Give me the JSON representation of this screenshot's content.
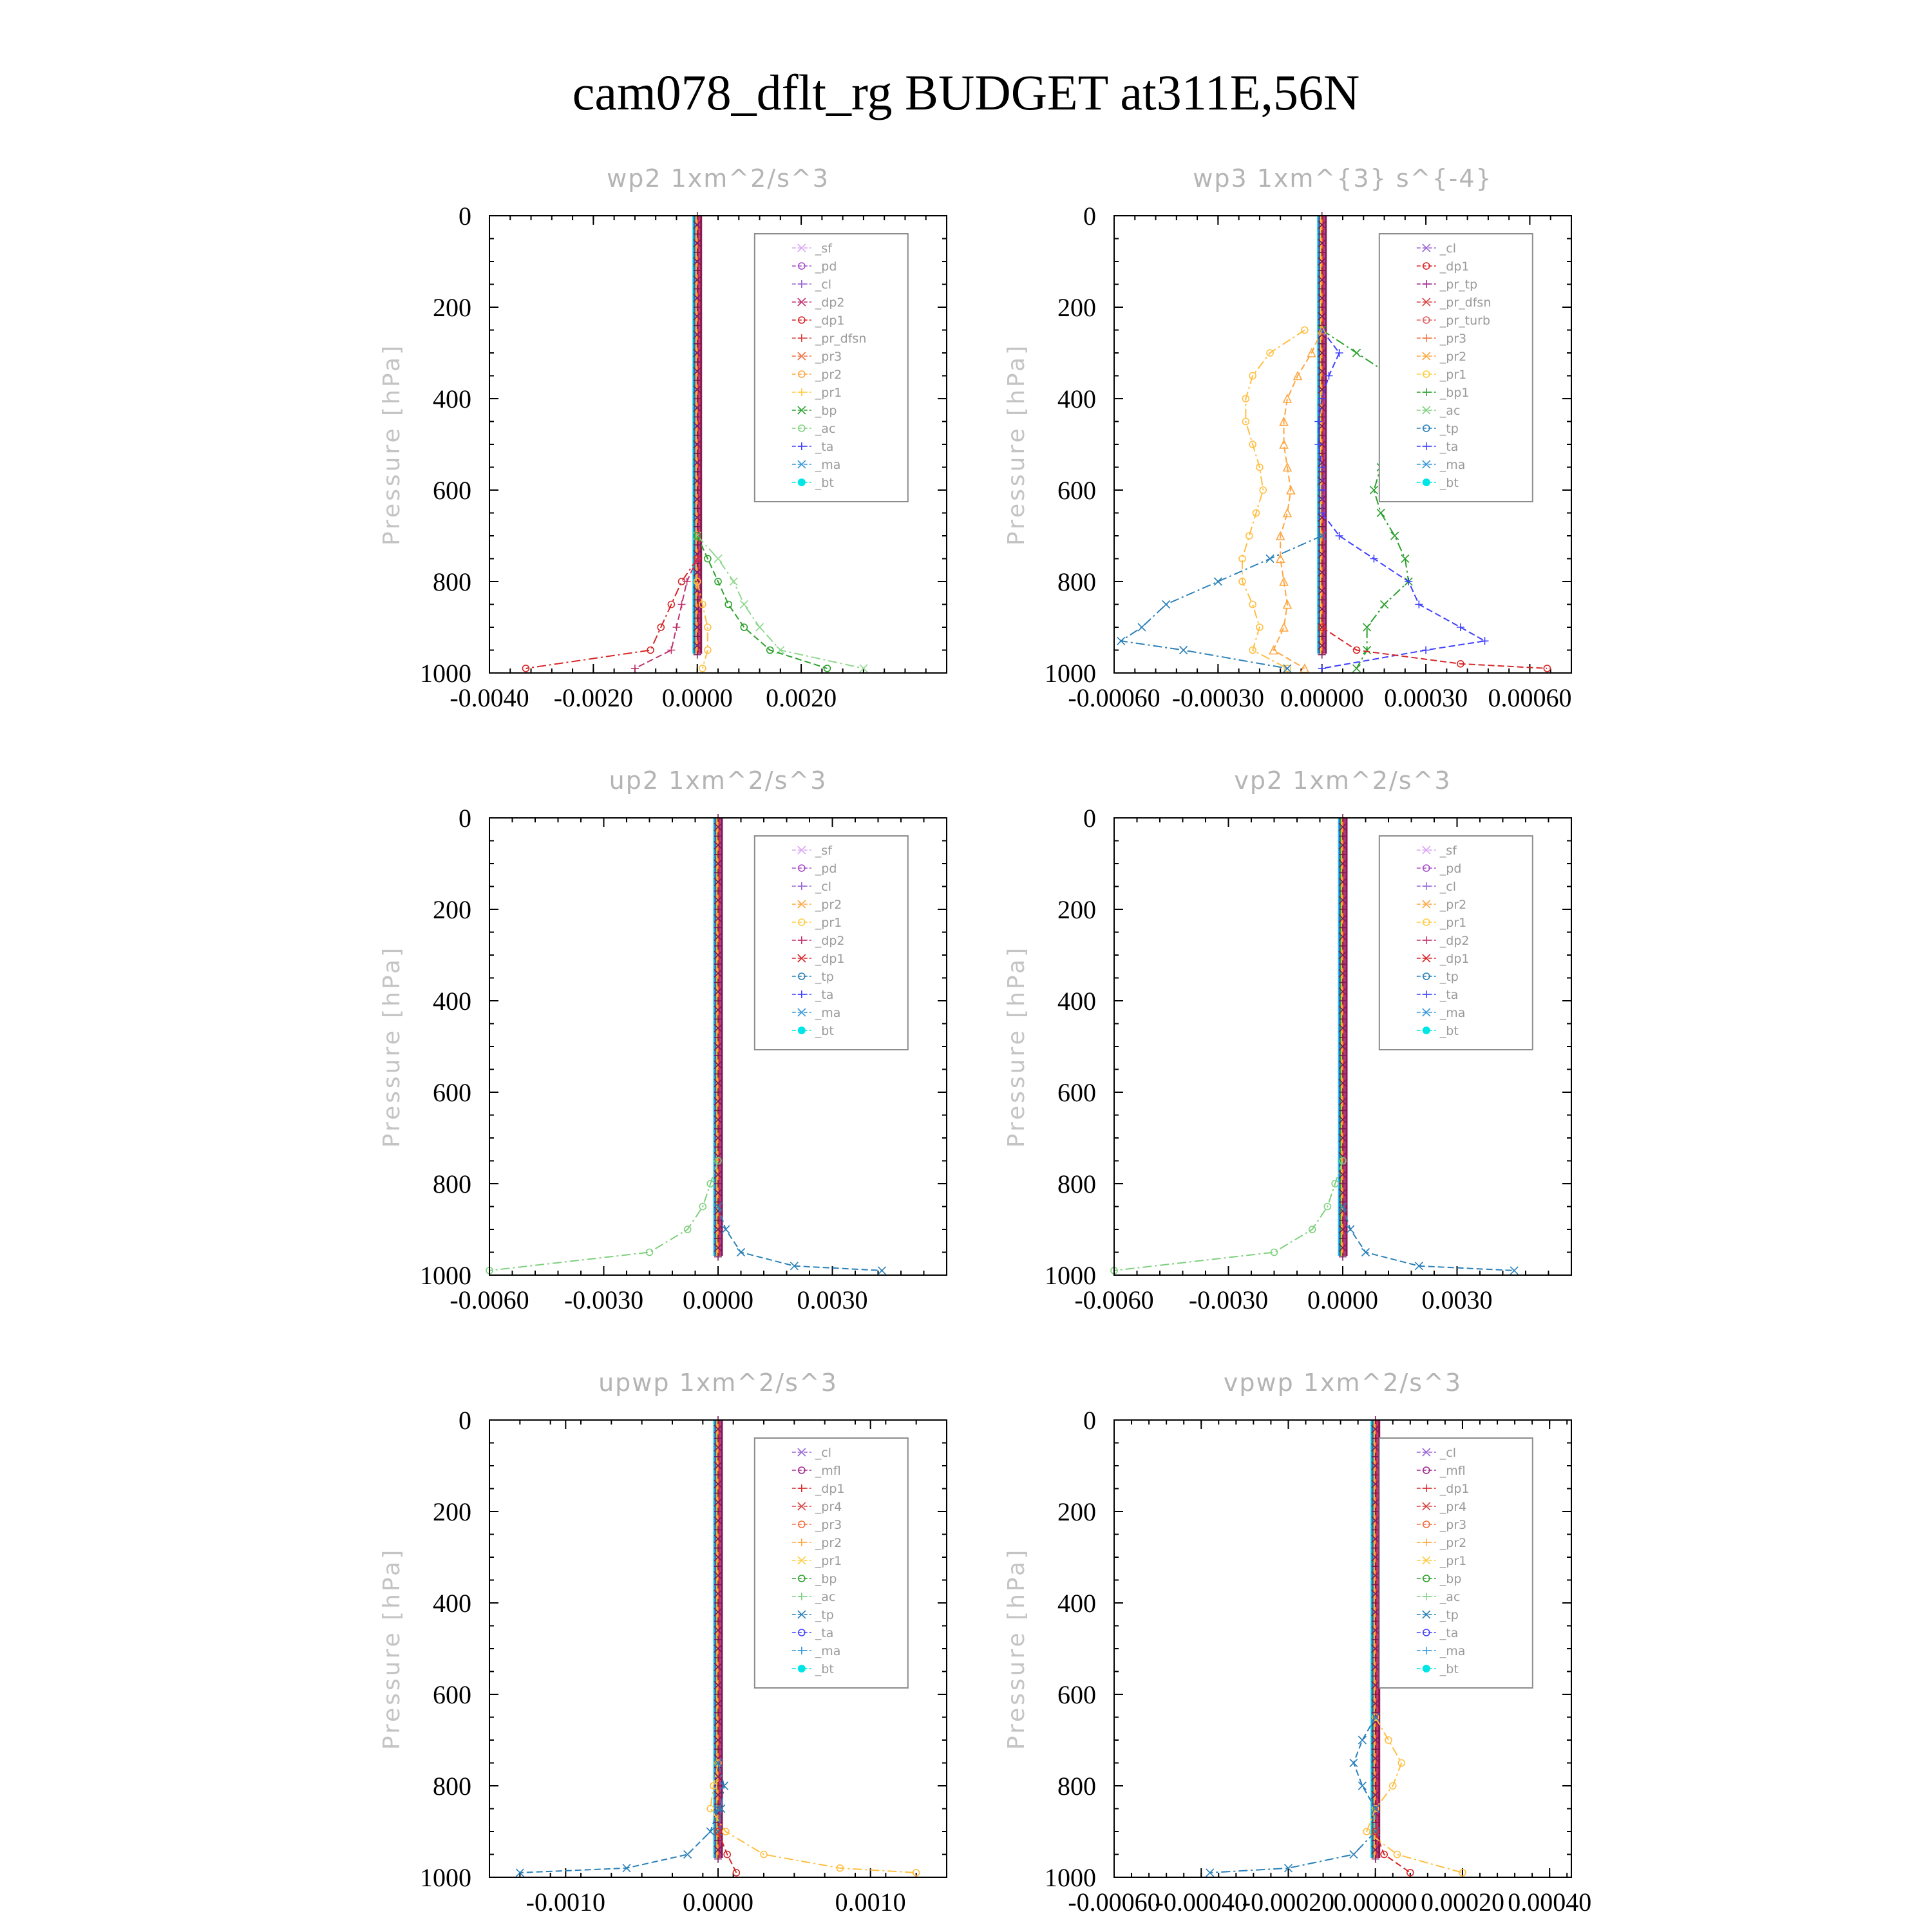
{
  "figure": {
    "title": "cam078_dflt_rg  BUDGET at311E,56N"
  },
  "chart_data": [
    {
      "type": "line",
      "title": "wp2   1xm^2/s^3",
      "ylabel": "Pressure [hPa]",
      "ylim": [
        1000,
        0
      ],
      "xlim": [
        -0.004,
        0.0048
      ],
      "xticks": [
        -0.004,
        -0.002,
        0.0,
        0.002
      ],
      "xtick_labels": [
        "-0.0040",
        "-0.0020",
        "0.0000",
        "0.0020"
      ],
      "yticks": [
        0,
        200,
        400,
        600,
        800,
        1000
      ],
      "legend_position": "top-right",
      "legend": [
        "_sf",
        "_pd",
        "_cl",
        "_dp2",
        "_dp1",
        "_pr_dfsn",
        "_pr3",
        "_pr2",
        "_pr1",
        "_bp",
        "_ac",
        "_ta",
        "_ma",
        "_bt"
      ],
      "series": [
        {
          "name": "_bp",
          "color": "#8fd88f",
          "marker": "x",
          "pressure": [
            700,
            750,
            800,
            850,
            900,
            950,
            990
          ],
          "values": [
            0.0,
            0.0004,
            0.0007,
            0.0009,
            0.0012,
            0.0016,
            0.0032
          ]
        },
        {
          "name": "_ac",
          "color": "#2ca02c",
          "marker": "o",
          "pressure": [
            700,
            750,
            800,
            850,
            900,
            950,
            990
          ],
          "values": [
            0.0,
            0.0002,
            0.0004,
            0.0006,
            0.0009,
            0.0014,
            0.0025
          ]
        },
        {
          "name": "_dp1",
          "color": "#d62728",
          "marker": "o",
          "pressure": [
            750,
            800,
            850,
            900,
            950,
            990
          ],
          "values": [
            0.0,
            -0.0003,
            -0.0005,
            -0.0007,
            -0.0009,
            -0.0033
          ]
        },
        {
          "name": "_dp2",
          "color": "#c0306f",
          "marker": "+",
          "pressure": [
            750,
            800,
            850,
            900,
            950,
            990
          ],
          "values": [
            0.0,
            -0.0002,
            -0.0003,
            -0.0004,
            -0.0005,
            -0.0012
          ]
        },
        {
          "name": "_pr1",
          "color": "#ffbf40",
          "marker": "o",
          "pressure": [
            800,
            850,
            900,
            950,
            990
          ],
          "values": [
            0.0,
            0.0001,
            0.0002,
            0.0002,
            0.0001
          ]
        }
      ]
    },
    {
      "type": "line",
      "title": "wp3   1xm^{3} s^{-4}",
      "ylabel": "Pressure [hPa]",
      "ylim": [
        1000,
        0
      ],
      "xlim": [
        -0.0006,
        0.00072
      ],
      "xticks": [
        -0.0006,
        -0.0003,
        0.0,
        0.0003,
        0.0006
      ],
      "xtick_labels": [
        "-0.00060",
        "-0.00030",
        "0.00000",
        "0.00030",
        "0.00060"
      ],
      "yticks": [
        0,
        200,
        400,
        600,
        800,
        1000
      ],
      "legend_position": "top-right",
      "legend": [
        "_cl",
        "_dp1",
        "_pr_tp",
        "_pr_dfsn",
        "_pr_turb",
        "_pr3",
        "_pr2",
        "_pr1",
        "_bp1",
        "_ac",
        "_tp",
        "_ta",
        "_ma",
        "_bt"
      ],
      "series": [
        {
          "name": "_bp1",
          "color": "#2ca02c",
          "marker": "x",
          "pressure": [
            250,
            300,
            350,
            400,
            450,
            500,
            550,
            600,
            650,
            700,
            750,
            800,
            850,
            900,
            950,
            990
          ],
          "values": [
            0.0,
            0.0001,
            0.0002,
            0.0002,
            0.00021,
            0.00021,
            0.00017,
            0.00015,
            0.00017,
            0.00021,
            0.00024,
            0.00025,
            0.00018,
            0.00013,
            0.00013,
            0.0001
          ]
        },
        {
          "name": "_tp",
          "color": "#4040ff",
          "marker": "+",
          "pressure": [
            250,
            300,
            350,
            400,
            450,
            500,
            550,
            600,
            650,
            700,
            750,
            800,
            850,
            900,
            930,
            950,
            990
          ],
          "values": [
            0.0,
            5e-05,
            2e-05,
            0.0,
            -1e-05,
            -1e-05,
            0.0,
            0.0,
            0.0,
            5e-05,
            0.00015,
            0.00025,
            0.00028,
            0.0004,
            0.00047,
            0.0003,
            0.0
          ]
        },
        {
          "name": "_pr1",
          "color": "#ffbf40",
          "marker": "o",
          "pressure": [
            250,
            300,
            350,
            400,
            450,
            500,
            550,
            600,
            650,
            700,
            750,
            800,
            850,
            900,
            950,
            990
          ],
          "values": [
            -5e-05,
            -0.00015,
            -0.0002,
            -0.00022,
            -0.00022,
            -0.0002,
            -0.00018,
            -0.00017,
            -0.00019,
            -0.00021,
            -0.00023,
            -0.00023,
            -0.0002,
            -0.00018,
            -0.0002,
            -0.0001
          ]
        },
        {
          "name": "_pr2",
          "color": "#ffa640",
          "marker": "^",
          "pressure": [
            250,
            300,
            350,
            400,
            450,
            500,
            550,
            600,
            650,
            700,
            750,
            800,
            850,
            900,
            950,
            990
          ],
          "values": [
            0.0,
            -3e-05,
            -7e-05,
            -0.0001,
            -0.00011,
            -0.00011,
            -0.0001,
            -9e-05,
            -0.0001,
            -0.00012,
            -0.00012,
            -0.00011,
            -0.0001,
            -0.00011,
            -0.00014,
            -5e-05
          ]
        },
        {
          "name": "_ma",
          "color": "#2980b9",
          "marker": "x",
          "pressure": [
            700,
            750,
            800,
            850,
            900,
            930,
            950,
            990
          ],
          "values": [
            0.0,
            -0.00015,
            -0.0003,
            -0.00045,
            -0.00052,
            -0.00058,
            -0.0004,
            -0.0001
          ]
        },
        {
          "name": "_dp1",
          "color": "#d62728",
          "marker": "o",
          "pressure": [
            900,
            950,
            980,
            990
          ],
          "values": [
            0.0,
            0.0001,
            0.0004,
            0.00065
          ]
        }
      ]
    },
    {
      "type": "line",
      "title": "up2   1xm^2/s^3",
      "ylabel": "Pressure [hPa]",
      "ylim": [
        1000,
        0
      ],
      "xlim": [
        -0.006,
        0.006
      ],
      "xticks": [
        -0.006,
        -0.003,
        0.0,
        0.003
      ],
      "xtick_labels": [
        "-0.0060",
        "-0.0030",
        "0.0000",
        "0.0030"
      ],
      "yticks": [
        0,
        200,
        400,
        600,
        800,
        1000
      ],
      "legend_position": "top-right",
      "legend": [
        "_sf",
        "_pd",
        "_cl",
        "_pr2",
        "_pr1",
        "_dp2",
        "_dp1",
        "_tp",
        "_ta",
        "_ma",
        "_bt"
      ],
      "series": [
        {
          "name": "_dp1",
          "color": "#7fd07f",
          "marker": "o",
          "pressure": [
            750,
            800,
            850,
            900,
            950,
            990
          ],
          "values": [
            0.0,
            -0.0002,
            -0.0004,
            -0.0008,
            -0.0018,
            -0.006
          ]
        },
        {
          "name": "_tp",
          "color": "#2980b9",
          "marker": "x",
          "pressure": [
            850,
            900,
            950,
            980,
            990
          ],
          "values": [
            0.0,
            0.0002,
            0.0006,
            0.002,
            0.0043
          ]
        }
      ]
    },
    {
      "type": "line",
      "title": "vp2   1xm^2/s^3",
      "ylabel": "Pressure [hPa]",
      "ylim": [
        1000,
        0
      ],
      "xlim": [
        -0.006,
        0.006
      ],
      "xticks": [
        -0.006,
        -0.003,
        0.0,
        0.003
      ],
      "xtick_labels": [
        "-0.0060",
        "-0.0030",
        "0.0000",
        "0.0030"
      ],
      "yticks": [
        0,
        200,
        400,
        600,
        800,
        1000
      ],
      "legend_position": "top-right",
      "legend": [
        "_sf",
        "_pd",
        "_cl",
        "_pr2",
        "_pr1",
        "_dp2",
        "_dp1",
        "_tp",
        "_ta",
        "_ma",
        "_bt"
      ],
      "series": [
        {
          "name": "_dp1",
          "color": "#7fd07f",
          "marker": "o",
          "pressure": [
            750,
            800,
            850,
            900,
            950,
            990
          ],
          "values": [
            0.0,
            -0.0002,
            -0.0004,
            -0.0008,
            -0.0018,
            -0.006
          ]
        },
        {
          "name": "_tp",
          "color": "#2980b9",
          "marker": "x",
          "pressure": [
            850,
            900,
            950,
            980,
            990
          ],
          "values": [
            0.0,
            0.0002,
            0.0006,
            0.002,
            0.0045
          ]
        }
      ]
    },
    {
      "type": "line",
      "title": "upwp   1xm^2/s^3",
      "ylabel": "Pressure [hPa]",
      "ylim": [
        1000,
        0
      ],
      "xlim": [
        -0.0015,
        0.0015
      ],
      "xticks": [
        -0.001,
        0.0,
        0.001
      ],
      "xtick_labels": [
        "-0.0010",
        "0.0000",
        "0.0010"
      ],
      "yticks": [
        0,
        200,
        400,
        600,
        800,
        1000
      ],
      "legend_position": "top-right",
      "legend": [
        "_cl",
        "_mfl",
        "_dp1",
        "_pr4",
        "_pr3",
        "_pr2",
        "_pr1",
        "_bp",
        "_ac",
        "_tp",
        "_ta",
        "_ma",
        "_bt"
      ],
      "series": [
        {
          "name": "_pr1",
          "color": "#ffbf40",
          "marker": "o",
          "pressure": [
            750,
            800,
            850,
            900,
            950,
            980,
            990
          ],
          "values": [
            0.0,
            -3e-05,
            -5e-05,
            5e-05,
            0.0003,
            0.0008,
            0.0013
          ]
        },
        {
          "name": "_ma",
          "color": "#2980b9",
          "marker": "x",
          "pressure": [
            850,
            900,
            950,
            980,
            990
          ],
          "values": [
            0.0,
            -5e-05,
            -0.0002,
            -0.0006,
            -0.0013
          ]
        },
        {
          "name": "_tp",
          "color": "#2980b9",
          "marker": "x",
          "pressure": [
            750,
            800,
            850,
            900
          ],
          "values": [
            0.0,
            4e-05,
            2e-05,
            0.0
          ]
        },
        {
          "name": "_pr4",
          "color": "#d62728",
          "marker": "o",
          "pressure": [
            900,
            950,
            990
          ],
          "values": [
            0.0,
            6e-05,
            0.00012
          ]
        }
      ]
    },
    {
      "type": "line",
      "title": "vpwp   1xm^2/s^3",
      "ylabel": "Pressure [hPa]",
      "ylim": [
        1000,
        0
      ],
      "xlim": [
        -0.0006,
        0.00045
      ],
      "xticks": [
        -0.0006,
        -0.0004,
        -0.0002,
        0.0,
        0.0002,
        0.0004
      ],
      "xtick_labels": [
        "-0.00060",
        "-0.00040",
        "-0.00020",
        "0.00000",
        "0.00020",
        "0.00040"
      ],
      "yticks": [
        0,
        200,
        400,
        600,
        800,
        1000
      ],
      "legend_position": "top-right",
      "legend": [
        "_cl",
        "_mfl",
        "_dp1",
        "_pr4",
        "_pr3",
        "_pr2",
        "_pr1",
        "_bp",
        "_ac",
        "_tp",
        "_ta",
        "_ma",
        "_bt"
      ],
      "series": [
        {
          "name": "_pr1",
          "color": "#ffbf40",
          "marker": "o",
          "pressure": [
            650,
            700,
            750,
            800,
            850,
            900,
            950,
            990
          ],
          "values": [
            0.0,
            3e-05,
            6e-05,
            4e-05,
            0.0,
            -2e-05,
            5e-05,
            0.0002
          ]
        },
        {
          "name": "_tp",
          "color": "#2980b9",
          "marker": "x",
          "pressure": [
            650,
            700,
            750,
            800,
            850,
            900
          ],
          "values": [
            0.0,
            -3e-05,
            -5e-05,
            -3e-05,
            0.0,
            0.0
          ]
        },
        {
          "name": "_ma",
          "color": "#2980b9",
          "marker": "x",
          "pressure": [
            900,
            950,
            980,
            990
          ],
          "values": [
            0.0,
            -5e-05,
            -0.0002,
            -0.00038
          ]
        },
        {
          "name": "_dp1",
          "color": "#d62728",
          "marker": "o",
          "pressure": [
            900,
            950,
            990
          ],
          "values": [
            0.0,
            2e-05,
            8e-05
          ]
        }
      ]
    }
  ],
  "legend_colors": {
    "_sf": "#d9a6f5",
    "_pd": "#a64dc7",
    "_cl": "#9966d6",
    "_mfl": "#a02790",
    "_dp2": "#c0306f",
    "_dp1": "#d62728",
    "_pr_tp": "#a02790",
    "_pr_dfsn": "#d64545",
    "_pr_turb": "#e06060",
    "_pr4": "#d64545",
    "_pr3": "#f07040",
    "_pr2": "#ffa640",
    "_pr1": "#ffcc40",
    "_bp": "#2ca02c",
    "_bp1": "#2ca02c",
    "_ac": "#7fd07f",
    "_tp": "#2980b9",
    "_ta": "#4040ff",
    "_ma": "#3498db",
    "_bt": "#00e5e5"
  }
}
